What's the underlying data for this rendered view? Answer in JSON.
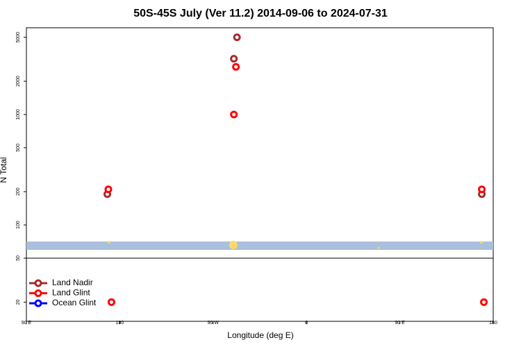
{
  "chart_data": {
    "type": "scatter",
    "title": "50S-45S July (Ver 11.2)   2014-09-06 to 2024-07-31",
    "x_label": "Longitude (deg E)",
    "y_label": "N Total",
    "log_y": true,
    "legend": "bottom-left",
    "xlim": [
      90,
      540
    ],
    "ylim": [
      13.4,
      6100
    ],
    "xticks": [
      {
        "value": 90,
        "label": "90 E"
      },
      180,
      {
        "value": 270,
        "label": "90 W"
      },
      {
        "value": 360,
        "label": "0"
      },
      {
        "value": 450,
        "label": "90 E"
      },
      {
        "value": 540,
        "label": "180"
      }
    ],
    "yticks": [
      20,
      50,
      100,
      200,
      500,
      1000,
      2000,
      5000
    ],
    "series": [
      {
        "name": "Land Nadir",
        "color": "#a52a2a",
        "x": [
          290,
          293,
          168,
          529
        ],
        "values": [
          3200,
          5000,
          190,
          190
        ]
      },
      {
        "name": "Land Glint",
        "color": "#ff0000",
        "x": [
          292,
          290,
          169,
          529,
          172,
          531
        ],
        "values": [
          2700,
          1000,
          210,
          210,
          20,
          20
        ]
      },
      {
        "name": "Ocean Glint",
        "color": "#0000ff",
        "x": [],
        "values": []
      }
    ]
  }
}
